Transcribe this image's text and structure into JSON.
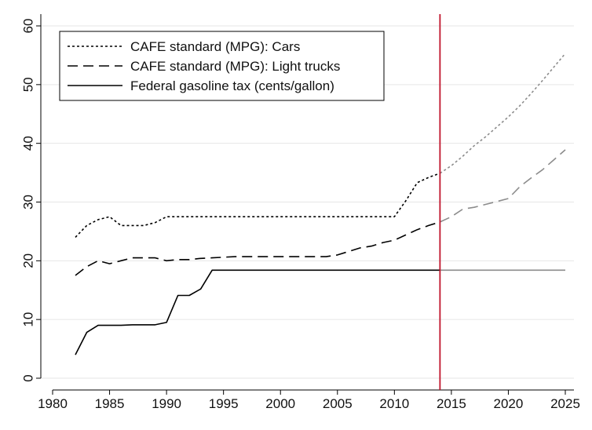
{
  "chart_data": {
    "type": "line",
    "title": "",
    "xlabel": "",
    "ylabel": "",
    "xlim": [
      1980,
      2025
    ],
    "ylim": [
      0,
      60
    ],
    "x_ticks": [
      1980,
      1985,
      1990,
      1995,
      2000,
      2005,
      2010,
      2015,
      2020,
      2025
    ],
    "y_ticks": [
      0,
      10,
      20,
      30,
      40,
      50,
      60
    ],
    "grid": "horizontal",
    "legend_position": "top-left",
    "vertical_marker": {
      "x": 2014,
      "color": "#c0142d"
    },
    "projection_start_x": 2014,
    "colors": {
      "historical": "#000000",
      "projected": "#8c8c8c"
    },
    "series": [
      {
        "name": "CAFE standard (MPG): Cars",
        "dash": "dotted",
        "points": [
          [
            1982,
            24.0
          ],
          [
            1983,
            26.0
          ],
          [
            1984,
            27.0
          ],
          [
            1985,
            27.5
          ],
          [
            1986,
            26.0
          ],
          [
            1987,
            26.0
          ],
          [
            1988,
            26.0
          ],
          [
            1989,
            26.5
          ],
          [
            1990,
            27.5
          ],
          [
            1995,
            27.5
          ],
          [
            2000,
            27.5
          ],
          [
            2005,
            27.5
          ],
          [
            2010,
            27.5
          ],
          [
            2011,
            30.2
          ],
          [
            2012,
            33.3
          ],
          [
            2013,
            34.2
          ],
          [
            2014,
            34.9
          ],
          [
            2015,
            36.2
          ],
          [
            2016,
            37.8
          ],
          [
            2017,
            39.6
          ],
          [
            2018,
            41.1
          ],
          [
            2019,
            42.8
          ],
          [
            2020,
            44.5
          ],
          [
            2021,
            46.4
          ],
          [
            2022,
            48.5
          ],
          [
            2023,
            50.7
          ],
          [
            2024,
            53.0
          ],
          [
            2025,
            55.3
          ]
        ]
      },
      {
        "name": "CAFE standard (MPG): Light trucks",
        "dash": "dashed",
        "points": [
          [
            1982,
            17.5
          ],
          [
            1983,
            19.0
          ],
          [
            1984,
            20.0
          ],
          [
            1985,
            19.5
          ],
          [
            1986,
            20.0
          ],
          [
            1987,
            20.5
          ],
          [
            1988,
            20.5
          ],
          [
            1989,
            20.5
          ],
          [
            1990,
            20.0
          ],
          [
            1991,
            20.2
          ],
          [
            1992,
            20.2
          ],
          [
            1993,
            20.4
          ],
          [
            1994,
            20.5
          ],
          [
            1995,
            20.6
          ],
          [
            1996,
            20.7
          ],
          [
            2000,
            20.7
          ],
          [
            2004,
            20.7
          ],
          [
            2005,
            21.0
          ],
          [
            2006,
            21.6
          ],
          [
            2007,
            22.2
          ],
          [
            2008,
            22.5
          ],
          [
            2009,
            23.1
          ],
          [
            2010,
            23.5
          ],
          [
            2011,
            24.4
          ],
          [
            2012,
            25.3
          ],
          [
            2013,
            26.0
          ],
          [
            2014,
            26.6
          ],
          [
            2015,
            27.5
          ],
          [
            2016,
            28.8
          ],
          [
            2017,
            29.1
          ],
          [
            2018,
            29.6
          ],
          [
            2019,
            30.1
          ],
          [
            2020,
            30.6
          ],
          [
            2021,
            32.6
          ],
          [
            2022,
            34.1
          ],
          [
            2023,
            35.5
          ],
          [
            2024,
            37.2
          ],
          [
            2025,
            38.9
          ]
        ]
      },
      {
        "name": "Federal gasoline tax (cents/gallon)",
        "dash": "solid",
        "points": [
          [
            1982,
            4.0
          ],
          [
            1983,
            7.8
          ],
          [
            1984,
            9.0
          ],
          [
            1985,
            9.0
          ],
          [
            1986,
            9.0
          ],
          [
            1987,
            9.1
          ],
          [
            1988,
            9.1
          ],
          [
            1989,
            9.1
          ],
          [
            1990,
            9.5
          ],
          [
            1991,
            14.1
          ],
          [
            1992,
            14.1
          ],
          [
            1993,
            15.2
          ],
          [
            1994,
            18.4
          ],
          [
            2000,
            18.4
          ],
          [
            2005,
            18.4
          ],
          [
            2010,
            18.4
          ],
          [
            2014,
            18.4
          ],
          [
            2020,
            18.4
          ],
          [
            2025,
            18.4
          ]
        ]
      }
    ]
  }
}
